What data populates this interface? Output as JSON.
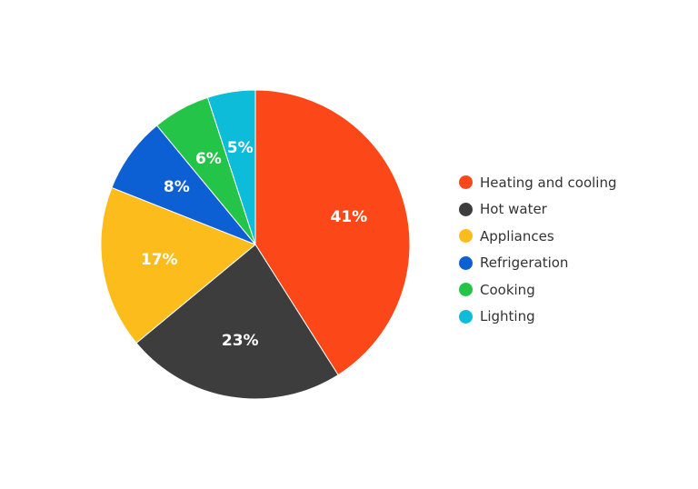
{
  "chart_data": {
    "type": "pie",
    "categories": [
      "Heating and cooling",
      "Hot water",
      "Appliances",
      "Refrigeration",
      "Cooking",
      "Lighting"
    ],
    "values": [
      41,
      23,
      17,
      8,
      6,
      5
    ],
    "labels": [
      "41%",
      "23%",
      "17%",
      "8%",
      "6%",
      "5%"
    ],
    "colors": [
      "#fc4818",
      "#3d3d3d",
      "#fcbc1c",
      "#0c60d4",
      "#24c448",
      "#0cbcd8"
    ],
    "start_angle": "12 o'clock",
    "direction": "clockwise",
    "legend_position": "right",
    "title": ""
  }
}
